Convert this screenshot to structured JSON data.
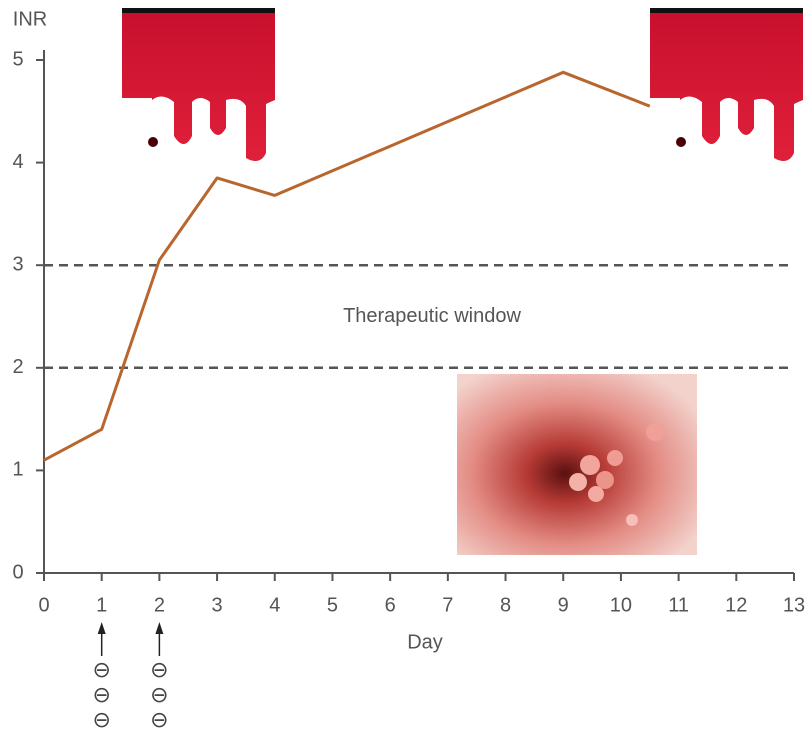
{
  "chart_data": {
    "type": "line",
    "ylabel": "INR",
    "xlabel": "Day",
    "x": [
      0,
      1,
      2,
      3,
      4,
      9,
      10.5
    ],
    "series": [
      {
        "name": "INR",
        "color": "#b8662e",
        "values": [
          1.1,
          1.4,
          3.05,
          3.85,
          3.68,
          4.88,
          4.55
        ]
      }
    ],
    "xlim": [
      0,
      13
    ],
    "ylim": [
      0,
      5
    ],
    "xticks": [
      0,
      1,
      2,
      3,
      4,
      5,
      6,
      7,
      8,
      9,
      10,
      11,
      12,
      13
    ],
    "yticks": [
      0,
      1,
      2,
      3,
      4,
      5
    ],
    "reference_lines": [
      2,
      3
    ],
    "window_label": "Therapeutic window",
    "dose_markers": [
      {
        "x": 1,
        "labels": [
          "⊖",
          "⊖",
          "⊖"
        ]
      },
      {
        "x": 2,
        "labels": [
          "⊖",
          "⊖",
          "⊖"
        ]
      }
    ]
  }
}
